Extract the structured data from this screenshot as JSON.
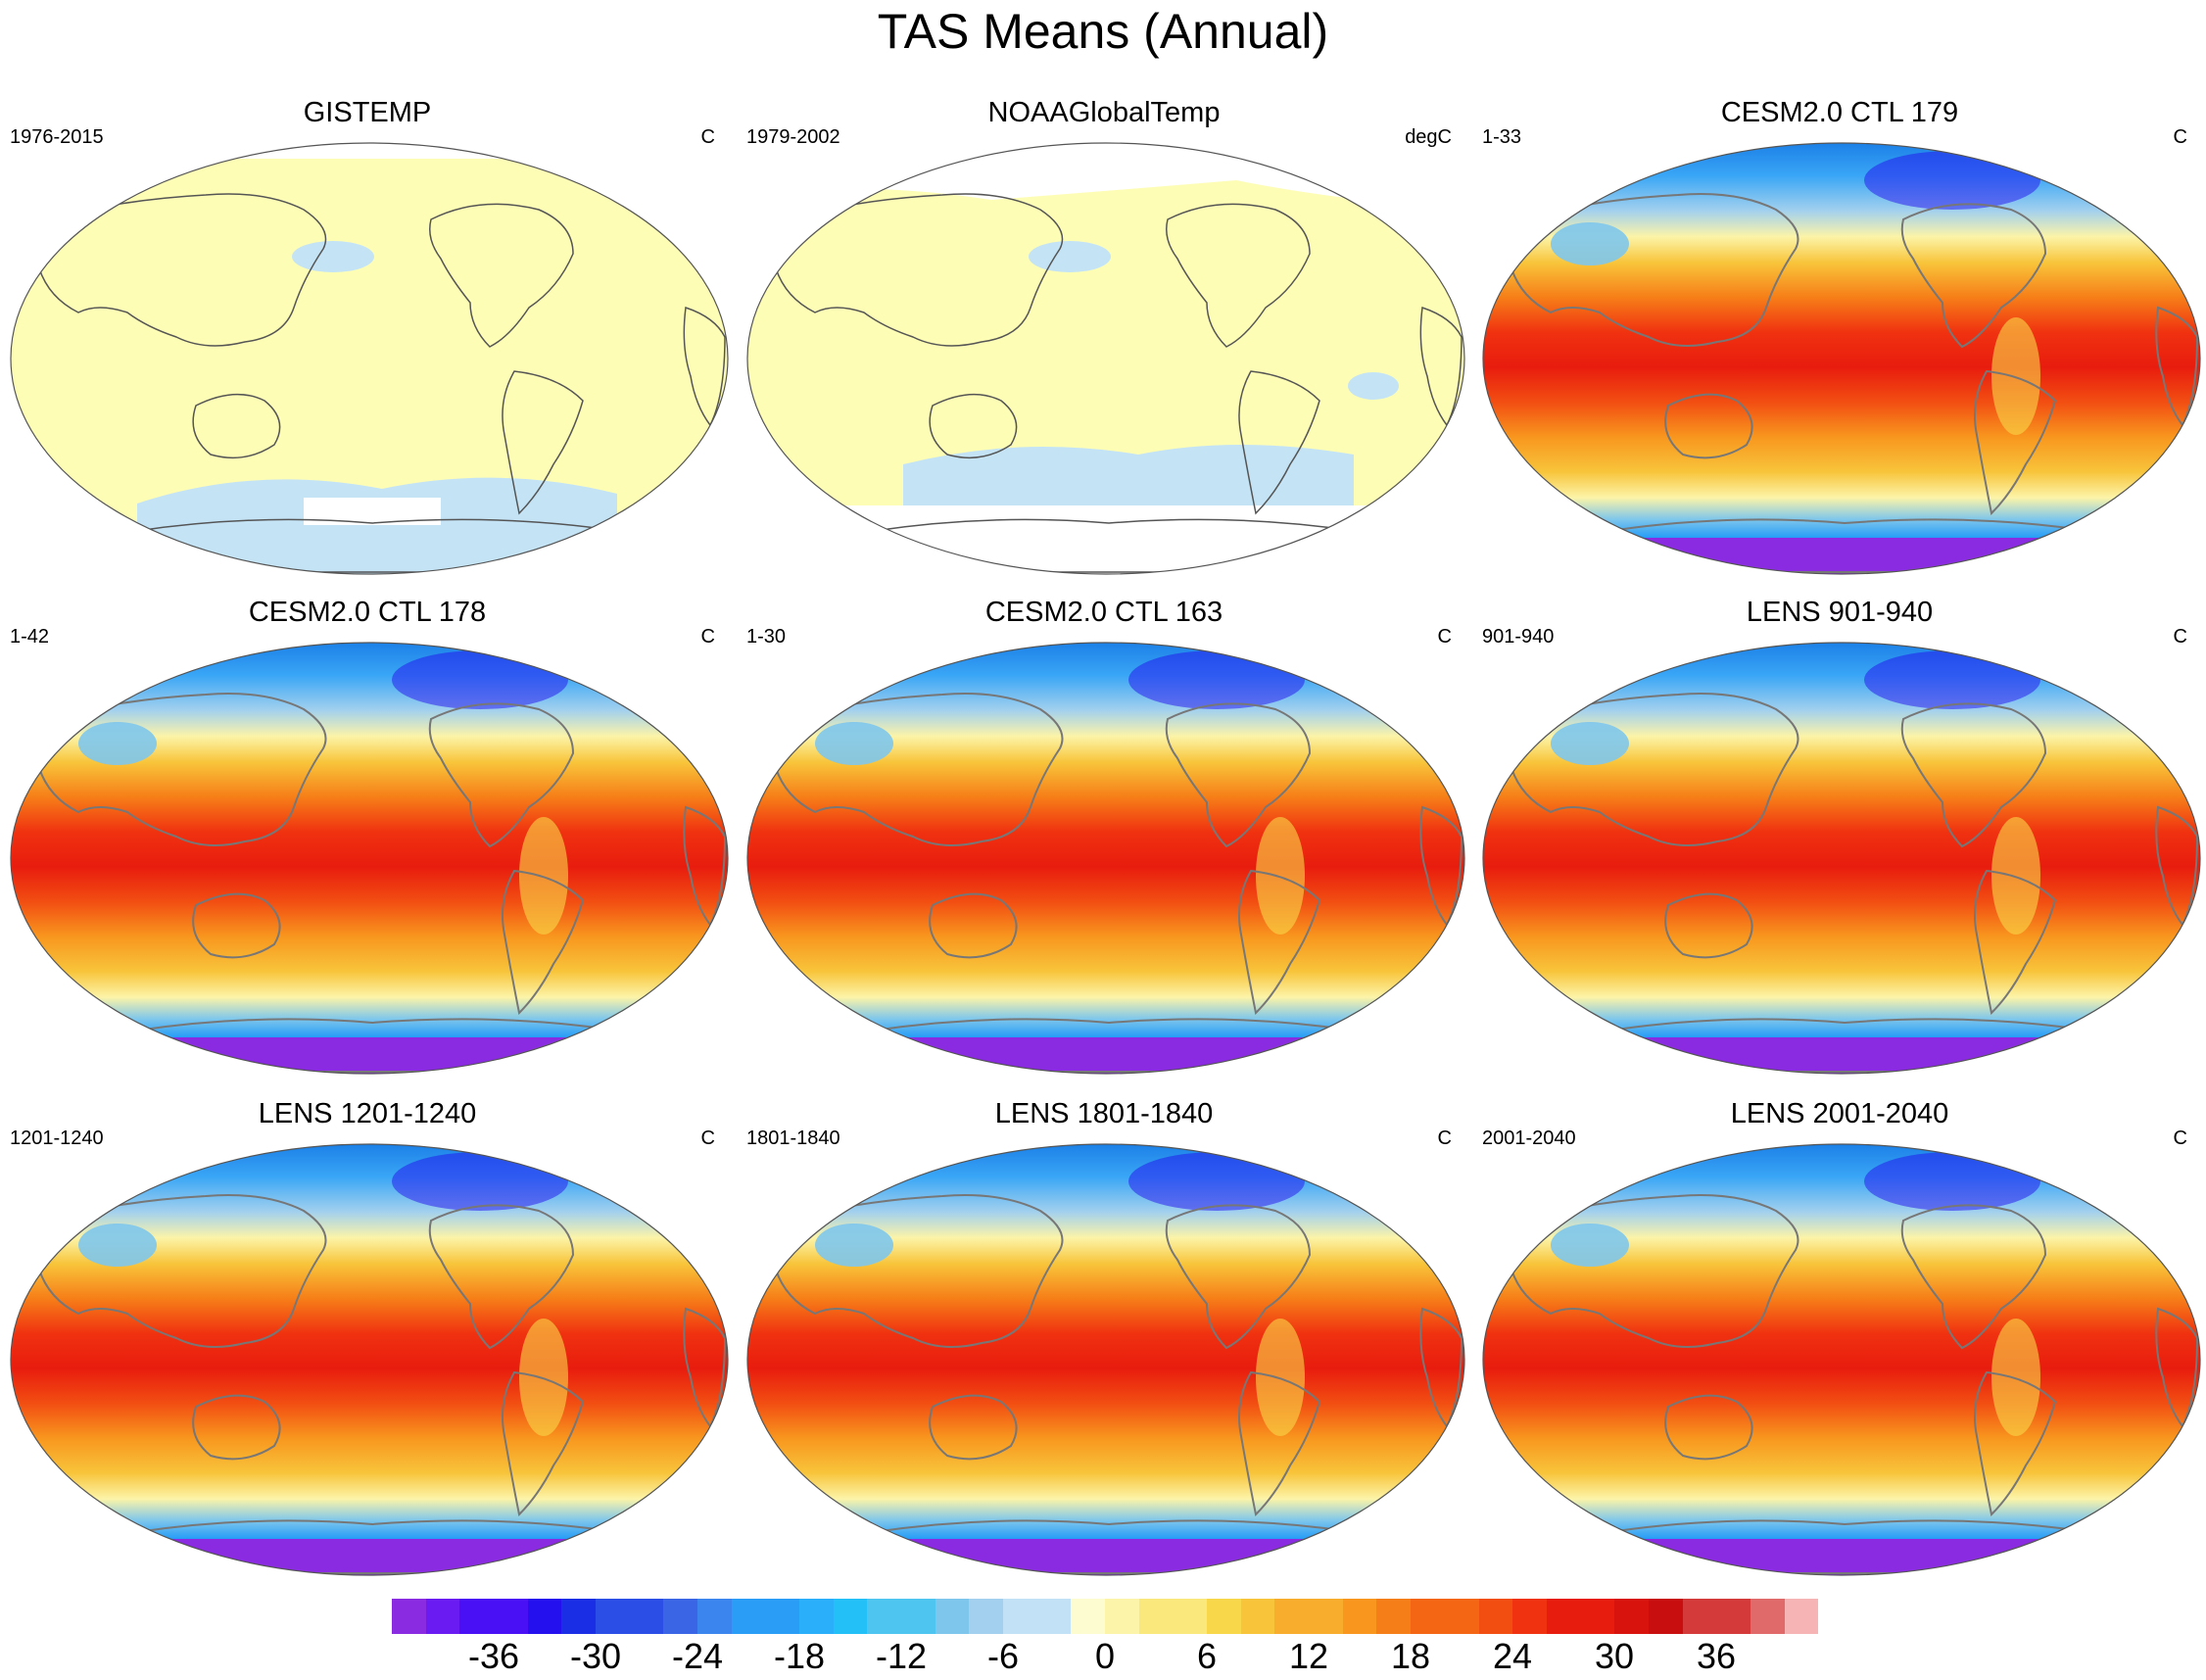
{
  "figure": {
    "title": "TAS Means (Annual)"
  },
  "panels": [
    {
      "id": "gistemp",
      "title": "GISTEMP",
      "left_text": "1976-2015",
      "right_text": "C",
      "style": "obs"
    },
    {
      "id": "noaa",
      "title": "NOAAGlobalTemp",
      "left_text": "1979-2002",
      "right_text": "degC",
      "style": "obs-sparse"
    },
    {
      "id": "cesm179",
      "title": "CESM2.0 CTL 179",
      "left_text": "1-33",
      "right_text": "C",
      "style": "model"
    },
    {
      "id": "cesm178",
      "title": "CESM2.0 CTL 178",
      "left_text": "1-42",
      "right_text": "C",
      "style": "model"
    },
    {
      "id": "cesm163",
      "title": "CESM2.0 CTL 163",
      "left_text": "1-30",
      "right_text": "C",
      "style": "model"
    },
    {
      "id": "lens901",
      "title": "LENS 901-940",
      "left_text": "901-940",
      "right_text": "C",
      "style": "model"
    },
    {
      "id": "lens1201",
      "title": "LENS 1201-1240",
      "left_text": "1201-1240",
      "right_text": "C",
      "style": "model"
    },
    {
      "id": "lens1801",
      "title": "LENS 1801-1840",
      "left_text": "1801-1840",
      "right_text": "C",
      "style": "model"
    },
    {
      "id": "lens2001",
      "title": "LENS 2001-2040",
      "left_text": "2001-2040",
      "right_text": "C",
      "style": "model"
    }
  ],
  "colorbar": {
    "colors": [
      "#8a2be2",
      "#6a1bf2",
      "#4a10f5",
      "#2410ee",
      "#1a2ee6",
      "#2a4ee6",
      "#3a66e6",
      "#3a86ee",
      "#2a9ef6",
      "#2ab0fa",
      "#22c0f6",
      "#4ec4f0",
      "#7ec6ec",
      "#a2d0ee",
      "#c2e0f6",
      "#fcfcd0",
      "#fcf4a8",
      "#fae87c",
      "#f8d84a",
      "#f8c43a",
      "#f8ae2c",
      "#f8961e",
      "#f67e18",
      "#f46614",
      "#f24e12",
      "#f03210",
      "#e81c0e",
      "#d8120c",
      "#c80e0e",
      "#d43a3a",
      "#e06a6a",
      "#f6b4b4"
    ],
    "tick_labels": [
      "-36",
      "-30",
      "-24",
      "-18",
      "-12",
      "-6",
      "0",
      "6",
      "12",
      "18",
      "24",
      "30",
      "36"
    ],
    "tick_boundaries": [
      3,
      6,
      9,
      12,
      15,
      18,
      21,
      24,
      27,
      30,
      33,
      36,
      39
    ],
    "ncells": 42
  },
  "map_colors": {
    "obs_fill": "#fefdb6",
    "obs_cold": "#c4e4f6",
    "missing": "#ffffff",
    "coast": "#555555",
    "model_coast": "#777777"
  }
}
